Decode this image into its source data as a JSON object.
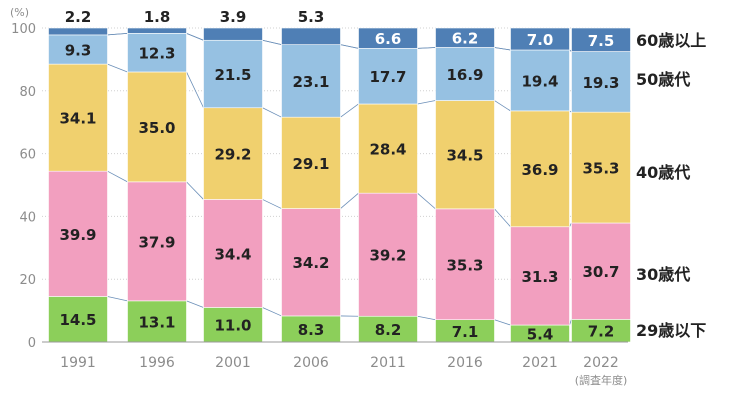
{
  "chart_data": {
    "type": "bar",
    "stacked": true,
    "categories": [
      "1991",
      "1996",
      "2001",
      "2006",
      "2011",
      "2016",
      "2021",
      "2022"
    ],
    "series": [
      {
        "name": "29歳以下",
        "color": "#8ccf5a",
        "label_color": "#222222",
        "values": [
          14.5,
          13.1,
          11.0,
          8.3,
          8.2,
          7.1,
          5.4,
          7.2
        ]
      },
      {
        "name": "30歳代",
        "color": "#f29fbf",
        "label_color": "#222222",
        "values": [
          39.9,
          37.9,
          34.4,
          34.2,
          39.2,
          35.3,
          31.3,
          30.7
        ]
      },
      {
        "name": "40歳代",
        "color": "#f0d06e",
        "label_color": "#222222",
        "values": [
          34.1,
          35.0,
          29.2,
          29.1,
          28.4,
          34.5,
          36.9,
          35.3
        ]
      },
      {
        "name": "50歳代",
        "color": "#96c1e2",
        "label_color": "#222222",
        "values": [
          9.3,
          12.3,
          21.5,
          23.1,
          17.7,
          16.9,
          19.4,
          19.3
        ]
      },
      {
        "name": "60歳以上",
        "color": "#4f7fb5",
        "label_color": "#ffffff",
        "values": [
          2.2,
          1.8,
          3.9,
          5.3,
          6.6,
          6.2,
          7.0,
          7.5
        ]
      }
    ],
    "yunit": "(%)",
    "xnote": "(調査年度)",
    "ylim": [
      0,
      100
    ],
    "yticks": [
      0,
      20,
      40,
      60,
      80,
      100
    ],
    "connector_lines": true,
    "legend_position": "right"
  }
}
